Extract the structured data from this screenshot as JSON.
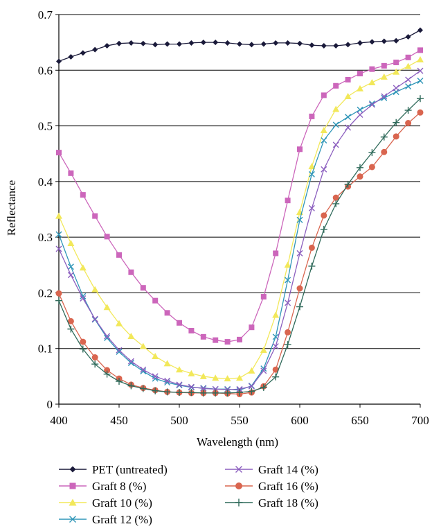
{
  "chart_data": {
    "type": "line",
    "xlabel": "Wavelength (nm)",
    "ylabel": "Reflectance",
    "xlim": [
      400,
      700
    ],
    "ylim": [
      0,
      0.7
    ],
    "xticks": [
      "400",
      "450",
      "500",
      "550",
      "600",
      "650",
      "700"
    ],
    "yticks": [
      "0",
      "0.1",
      "0.2",
      "0.3",
      "0.4",
      "0.5",
      "0.6",
      "0.7"
    ],
    "grid": "horizontal",
    "legend_position": "bottom",
    "x": [
      400,
      410,
      420,
      430,
      440,
      450,
      460,
      470,
      480,
      490,
      500,
      510,
      520,
      530,
      540,
      550,
      560,
      570,
      580,
      590,
      600,
      610,
      620,
      630,
      640,
      650,
      660,
      670,
      680,
      690,
      700
    ],
    "series": [
      {
        "name": "PET (untreated)",
        "color": "#1a1a3a",
        "marker": "diamond",
        "values": [
          0.616,
          0.624,
          0.631,
          0.637,
          0.644,
          0.648,
          0.649,
          0.648,
          0.646,
          0.647,
          0.647,
          0.649,
          0.65,
          0.65,
          0.649,
          0.647,
          0.646,
          0.647,
          0.649,
          0.649,
          0.648,
          0.645,
          0.644,
          0.644,
          0.646,
          0.649,
          0.651,
          0.652,
          0.653,
          0.66,
          0.672
        ]
      },
      {
        "name": "Graft 8 (%)",
        "color": "#cc66bb",
        "marker": "square",
        "values": [
          0.452,
          0.415,
          0.376,
          0.338,
          0.301,
          0.268,
          0.237,
          0.209,
          0.186,
          0.164,
          0.146,
          0.132,
          0.121,
          0.115,
          0.112,
          0.116,
          0.138,
          0.193,
          0.271,
          0.366,
          0.458,
          0.517,
          0.555,
          0.572,
          0.583,
          0.594,
          0.602,
          0.608,
          0.614,
          0.623,
          0.636
        ]
      },
      {
        "name": "Graft 10 (%)",
        "color": "#f2e85a",
        "marker": "triangle",
        "values": [
          0.338,
          0.289,
          0.245,
          0.206,
          0.174,
          0.145,
          0.122,
          0.104,
          0.086,
          0.073,
          0.062,
          0.055,
          0.05,
          0.047,
          0.046,
          0.047,
          0.06,
          0.097,
          0.16,
          0.25,
          0.345,
          0.427,
          0.492,
          0.53,
          0.553,
          0.567,
          0.578,
          0.588,
          0.597,
          0.607,
          0.619
        ]
      },
      {
        "name": "Graft 12 (%)",
        "color": "#2f96b8",
        "marker": "x",
        "values": [
          0.305,
          0.247,
          0.194,
          0.152,
          0.119,
          0.094,
          0.074,
          0.059,
          0.046,
          0.039,
          0.034,
          0.03,
          0.029,
          0.027,
          0.027,
          0.025,
          0.033,
          0.064,
          0.121,
          0.223,
          0.331,
          0.413,
          0.474,
          0.502,
          0.516,
          0.529,
          0.54,
          0.55,
          0.561,
          0.571,
          0.581
        ]
      },
      {
        "name": "Graft 14 (%)",
        "color": "#8c5fbf",
        "marker": "x",
        "values": [
          0.279,
          0.232,
          0.19,
          0.153,
          0.122,
          0.097,
          0.077,
          0.062,
          0.05,
          0.042,
          0.035,
          0.031,
          0.028,
          0.027,
          0.026,
          0.027,
          0.032,
          0.06,
          0.104,
          0.182,
          0.271,
          0.352,
          0.422,
          0.466,
          0.497,
          0.52,
          0.538,
          0.553,
          0.568,
          0.583,
          0.599
        ]
      },
      {
        "name": "Graft 16 (%)",
        "color": "#d9654f",
        "marker": "circle",
        "values": [
          0.199,
          0.149,
          0.112,
          0.084,
          0.061,
          0.046,
          0.035,
          0.029,
          0.025,
          0.022,
          0.021,
          0.02,
          0.02,
          0.02,
          0.019,
          0.018,
          0.021,
          0.032,
          0.062,
          0.129,
          0.208,
          0.281,
          0.339,
          0.371,
          0.391,
          0.409,
          0.426,
          0.453,
          0.481,
          0.505,
          0.524
        ]
      },
      {
        "name": "Graft 18 (%)",
        "color": "#2f6a5a",
        "marker": "plus",
        "values": [
          0.186,
          0.135,
          0.099,
          0.072,
          0.054,
          0.041,
          0.033,
          0.028,
          0.024,
          0.022,
          0.021,
          0.021,
          0.02,
          0.02,
          0.02,
          0.021,
          0.023,
          0.03,
          0.049,
          0.107,
          0.175,
          0.248,
          0.314,
          0.36,
          0.395,
          0.425,
          0.452,
          0.48,
          0.506,
          0.528,
          0.549
        ]
      }
    ]
  }
}
